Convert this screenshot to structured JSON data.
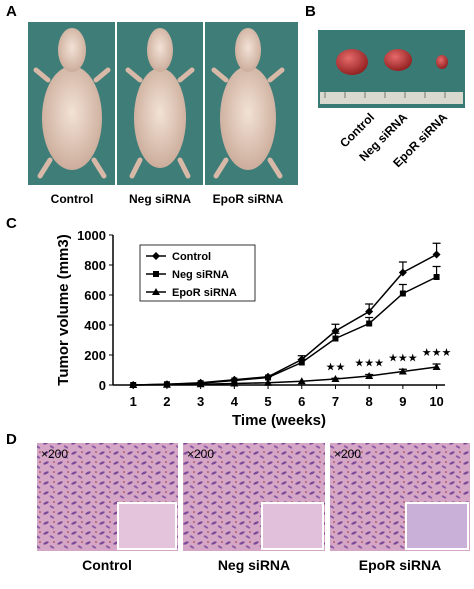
{
  "panels": {
    "a": {
      "label": "A",
      "captions": [
        "Control",
        "Neg siRNA",
        "EpoR siRNA"
      ]
    },
    "b": {
      "label": "B",
      "captions": [
        "Control",
        "Neg siRNA",
        "EpoR siRNA"
      ]
    },
    "c": {
      "label": "C"
    },
    "d": {
      "label": "D",
      "magnifications": [
        "×200",
        "×200",
        "×200"
      ],
      "captions": [
        "Control",
        "Neg siRNA",
        "EpoR siRNA"
      ]
    }
  },
  "chart_data": {
    "type": "line",
    "y_label": "Tumor volume (mm3)",
    "x_label": "Time (weeks)",
    "x": [
      1,
      2,
      3,
      4,
      5,
      6,
      7,
      8,
      9,
      10
    ],
    "xlim": [
      0.4,
      10.25
    ],
    "xticks": [
      1,
      2,
      3,
      4,
      5,
      6,
      7,
      8,
      9,
      10
    ],
    "ylim": [
      0,
      1000
    ],
    "yticks": [
      0,
      200,
      400,
      600,
      800,
      1000
    ],
    "legend": "top-left",
    "series": [
      {
        "name": "Control",
        "color": "#000000",
        "marker": "diamond",
        "values": [
          0,
          5,
          15,
          35,
          55,
          170,
          360,
          490,
          750,
          870
        ],
        "errors": [
          0,
          0,
          0,
          0,
          0,
          25,
          45,
          50,
          70,
          75
        ]
      },
      {
        "name": "Neg siRNA",
        "color": "#000000",
        "marker": "square",
        "values": [
          0,
          5,
          12,
          30,
          50,
          150,
          310,
          410,
          610,
          720
        ],
        "errors": [
          0,
          0,
          0,
          0,
          0,
          20,
          35,
          40,
          60,
          70
        ]
      },
      {
        "name": "EpoR siRNA",
        "color": "#000000",
        "marker": "triangle",
        "values": [
          0,
          2,
          5,
          10,
          15,
          25,
          40,
          60,
          90,
          120
        ],
        "errors": [
          0,
          0,
          0,
          0,
          0,
          0,
          5,
          10,
          15,
          20
        ]
      }
    ],
    "annotations": [
      {
        "x": 7,
        "text": "★★"
      },
      {
        "x": 8,
        "text": "★★★"
      },
      {
        "x": 9,
        "text": "★★★"
      },
      {
        "x": 10,
        "text": "★★★"
      }
    ]
  }
}
